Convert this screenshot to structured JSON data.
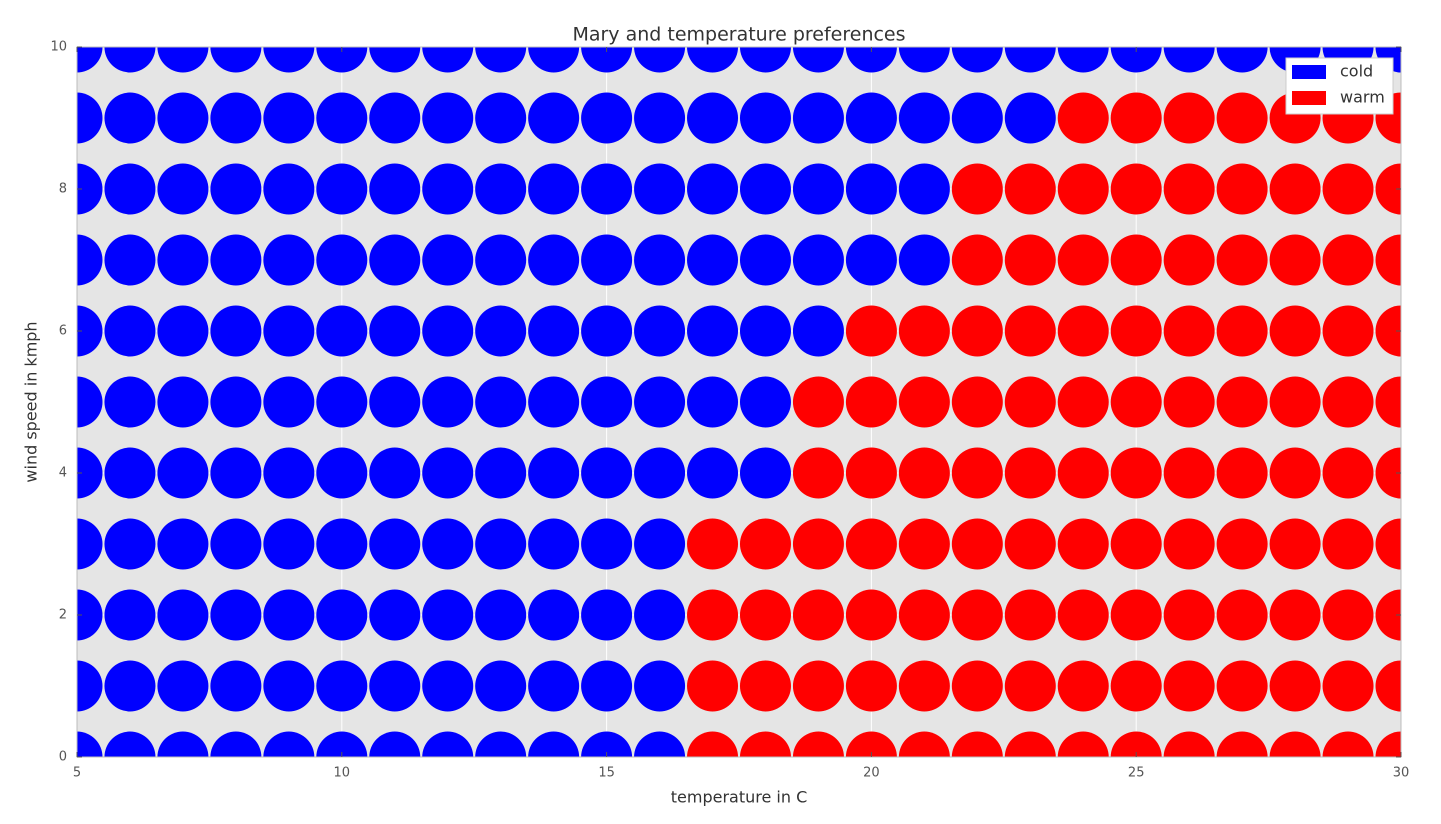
{
  "chart_data": {
    "type": "scatter",
    "title": "Mary and temperature preferences",
    "x_label": "temperature in C",
    "y_label": "wind speed in kmph",
    "xlim": [
      5,
      30
    ],
    "xticks": [
      5,
      10,
      15,
      20,
      25,
      30
    ],
    "ylim": [
      0,
      10
    ],
    "yticks": [
      0,
      2,
      4,
      6,
      8,
      10
    ],
    "grid": true,
    "legend": "upper right",
    "series": [
      {
        "name": "cold",
        "color": "#0000ff",
        "x": [
          5,
          6,
          7,
          8,
          9,
          10,
          11,
          12,
          13,
          14,
          15,
          16,
          5,
          6,
          7,
          8,
          9,
          10,
          11,
          12,
          13,
          14,
          15,
          16,
          5,
          6,
          7,
          8,
          9,
          10,
          11,
          12,
          13,
          14,
          15,
          16,
          5,
          6,
          7,
          8,
          9,
          10,
          11,
          12,
          13,
          14,
          15,
          16,
          5,
          6,
          7,
          8,
          9,
          10,
          11,
          12,
          13,
          14,
          15,
          16,
          17,
          18,
          5,
          6,
          7,
          8,
          9,
          10,
          11,
          12,
          13,
          14,
          15,
          16,
          17,
          18,
          5,
          6,
          7,
          8,
          9,
          10,
          11,
          12,
          13,
          14,
          15,
          16,
          17,
          18,
          19,
          5,
          6,
          7,
          8,
          9,
          10,
          11,
          12,
          13,
          14,
          15,
          16,
          17,
          18,
          19,
          20,
          21,
          5,
          6,
          7,
          8,
          9,
          10,
          11,
          12,
          13,
          14,
          15,
          16,
          17,
          18,
          19,
          20,
          21,
          5,
          6,
          7,
          8,
          9,
          10,
          11,
          12,
          13,
          14,
          15,
          16,
          17,
          18,
          19,
          20,
          21,
          22,
          23,
          5,
          6,
          7,
          8,
          9,
          10,
          11,
          12,
          13,
          14,
          15,
          16,
          17,
          18,
          19,
          20,
          21,
          22,
          23,
          24,
          25,
          26,
          27,
          28,
          29,
          30
        ],
        "y": [
          0,
          0,
          0,
          0,
          0,
          0,
          0,
          0,
          0,
          0,
          0,
          0,
          1,
          1,
          1,
          1,
          1,
          1,
          1,
          1,
          1,
          1,
          1,
          1,
          2,
          2,
          2,
          2,
          2,
          2,
          2,
          2,
          2,
          2,
          2,
          2,
          3,
          3,
          3,
          3,
          3,
          3,
          3,
          3,
          3,
          3,
          3,
          3,
          4,
          4,
          4,
          4,
          4,
          4,
          4,
          4,
          4,
          4,
          4,
          4,
          4,
          4,
          5,
          5,
          5,
          5,
          5,
          5,
          5,
          5,
          5,
          5,
          5,
          5,
          5,
          5,
          6,
          6,
          6,
          6,
          6,
          6,
          6,
          6,
          6,
          6,
          6,
          6,
          6,
          6,
          6,
          7,
          7,
          7,
          7,
          7,
          7,
          7,
          7,
          7,
          7,
          7,
          7,
          7,
          7,
          7,
          7,
          7,
          8,
          8,
          8,
          8,
          8,
          8,
          8,
          8,
          8,
          8,
          8,
          8,
          8,
          8,
          8,
          8,
          8,
          9,
          9,
          9,
          9,
          9,
          9,
          9,
          9,
          9,
          9,
          9,
          9,
          9,
          9,
          9,
          9,
          9,
          9,
          9,
          10,
          10,
          10,
          10,
          10,
          10,
          10,
          10,
          10,
          10,
          10,
          10,
          10,
          10,
          10,
          10,
          10,
          10,
          10,
          10,
          10,
          10,
          10,
          10,
          10,
          10
        ]
      },
      {
        "name": "warm",
        "color": "#ff0000",
        "x": [
          17,
          18,
          19,
          20,
          21,
          22,
          23,
          24,
          25,
          26,
          27,
          28,
          29,
          30,
          17,
          18,
          19,
          20,
          21,
          22,
          23,
          24,
          25,
          26,
          27,
          28,
          29,
          30,
          17,
          18,
          19,
          20,
          21,
          22,
          23,
          24,
          25,
          26,
          27,
          28,
          29,
          30,
          17,
          18,
          19,
          20,
          21,
          22,
          23,
          24,
          25,
          26,
          27,
          28,
          29,
          30,
          19,
          20,
          21,
          22,
          23,
          24,
          25,
          26,
          27,
          28,
          29,
          30,
          19,
          20,
          21,
          22,
          23,
          24,
          25,
          26,
          27,
          28,
          29,
          30,
          20,
          21,
          22,
          23,
          24,
          25,
          26,
          27,
          28,
          29,
          30,
          22,
          23,
          24,
          25,
          26,
          27,
          28,
          29,
          30,
          22,
          23,
          24,
          25,
          26,
          27,
          28,
          29,
          30,
          24,
          25,
          26,
          27,
          28,
          29,
          30
        ],
        "y": [
          0,
          0,
          0,
          0,
          0,
          0,
          0,
          0,
          0,
          0,
          0,
          0,
          0,
          0,
          1,
          1,
          1,
          1,
          1,
          1,
          1,
          1,
          1,
          1,
          1,
          1,
          1,
          1,
          2,
          2,
          2,
          2,
          2,
          2,
          2,
          2,
          2,
          2,
          2,
          2,
          2,
          2,
          3,
          3,
          3,
          3,
          3,
          3,
          3,
          3,
          3,
          3,
          3,
          3,
          3,
          3,
          4,
          4,
          4,
          4,
          4,
          4,
          4,
          4,
          4,
          4,
          4,
          4,
          5,
          5,
          5,
          5,
          5,
          5,
          5,
          5,
          5,
          5,
          5,
          5,
          6,
          6,
          6,
          6,
          6,
          6,
          6,
          6,
          6,
          6,
          6,
          7,
          7,
          7,
          7,
          7,
          7,
          7,
          7,
          7,
          8,
          8,
          8,
          8,
          8,
          8,
          8,
          8,
          8,
          9,
          9,
          9,
          9,
          9,
          9,
          9
        ]
      }
    ]
  }
}
